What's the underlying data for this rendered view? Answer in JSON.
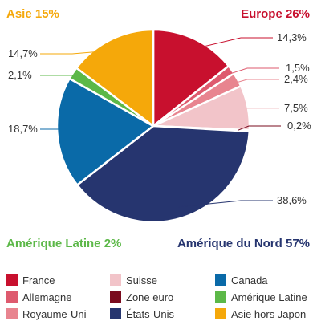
{
  "chart_data": {
    "type": "pie",
    "slices": [
      {
        "name": "France",
        "value": 14.3,
        "label": "14,3%",
        "color": "#c8102e"
      },
      {
        "name": "Allemagne",
        "value": 1.5,
        "label": "1,5%",
        "color": "#de5a6e"
      },
      {
        "name": "Royaume-Uni",
        "value": 2.4,
        "label": "2,4%",
        "color": "#e8848f"
      },
      {
        "name": "Suisse",
        "value": 7.5,
        "label": "7,5%",
        "color": "#f2c4c9"
      },
      {
        "name": "Zone euro",
        "value": 0.2,
        "label": "0,2%",
        "color": "#7a0b1e"
      },
      {
        "name": "États-Unis",
        "value": 38.6,
        "label": "38,6%",
        "color": "#26356f"
      },
      {
        "name": "Canada",
        "value": 18.7,
        "label": "18,7%",
        "color": "#0a6aa8"
      },
      {
        "name": "Amérique Latine",
        "value": 2.1,
        "label": "2,1%",
        "color": "#5cb848"
      },
      {
        "name": "Asie hors Japon",
        "value": 14.7,
        "label": "14,7%",
        "color": "#f5a80a"
      }
    ],
    "region_labels": [
      {
        "id": "asie",
        "text": "Asie 15%",
        "color": "#f5a80a"
      },
      {
        "id": "europe",
        "text": "Europe 26%",
        "color": "#c8102e"
      },
      {
        "id": "amerique-latine",
        "text": "Amérique Latine 2%",
        "color": "#5cb848"
      },
      {
        "id": "amerique-nord",
        "text": "Amérique du Nord 57%",
        "color": "#26356f"
      }
    ],
    "legend": [
      {
        "name": "France",
        "color": "#c8102e"
      },
      {
        "name": "Suisse",
        "color": "#f2c4c9"
      },
      {
        "name": "Canada",
        "color": "#0a6aa8"
      },
      {
        "name": "Allemagne",
        "color": "#de5a6e"
      },
      {
        "name": "Zone euro",
        "color": "#7a0b1e"
      },
      {
        "name": "Amérique Latine",
        "color": "#5cb848"
      },
      {
        "name": "Royaume-Uni",
        "color": "#e8848f"
      },
      {
        "name": "États-Unis",
        "color": "#26356f"
      },
      {
        "name": "Asie hors Japon",
        "color": "#f5a80a"
      }
    ]
  }
}
